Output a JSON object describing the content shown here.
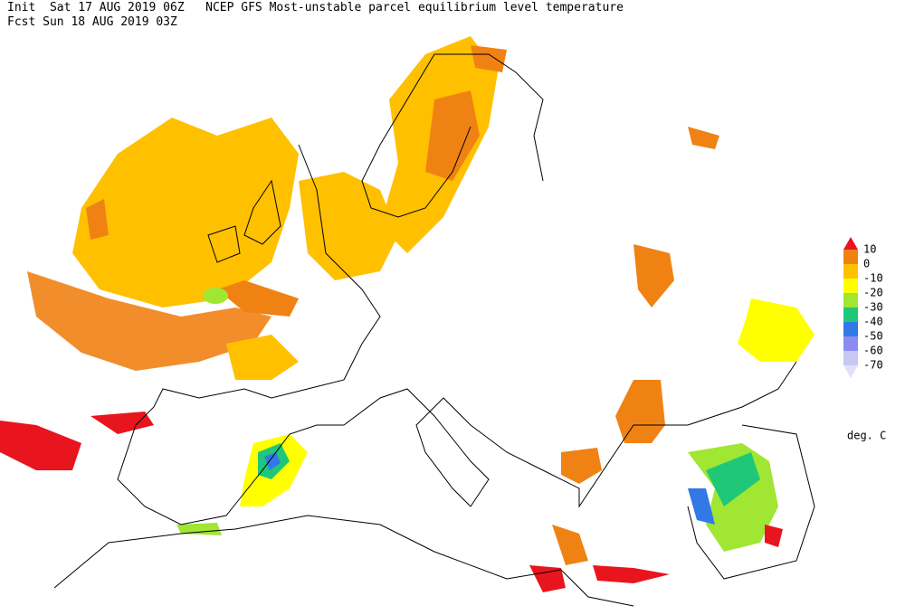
{
  "header": {
    "line1": "Init  Sat 17 AUG 2019 06Z   NCEP GFS Most-unstable parcel equilibrium level temperature",
    "line2": "Fcst Sun 18 AUG 2019 03Z"
  },
  "legend": {
    "labels": [
      "10",
      "0",
      "-10",
      "-20",
      "-30",
      "-40",
      "-50",
      "-60",
      "-70"
    ],
    "colors": [
      "#e8141e",
      "#f08214",
      "#ffc000",
      "#ffff00",
      "#a0e632",
      "#1ec878",
      "#3278e6",
      "#8c8cf0",
      "#c8c8f5",
      "#e1e1fa"
    ],
    "unit": "deg. C"
  }
}
